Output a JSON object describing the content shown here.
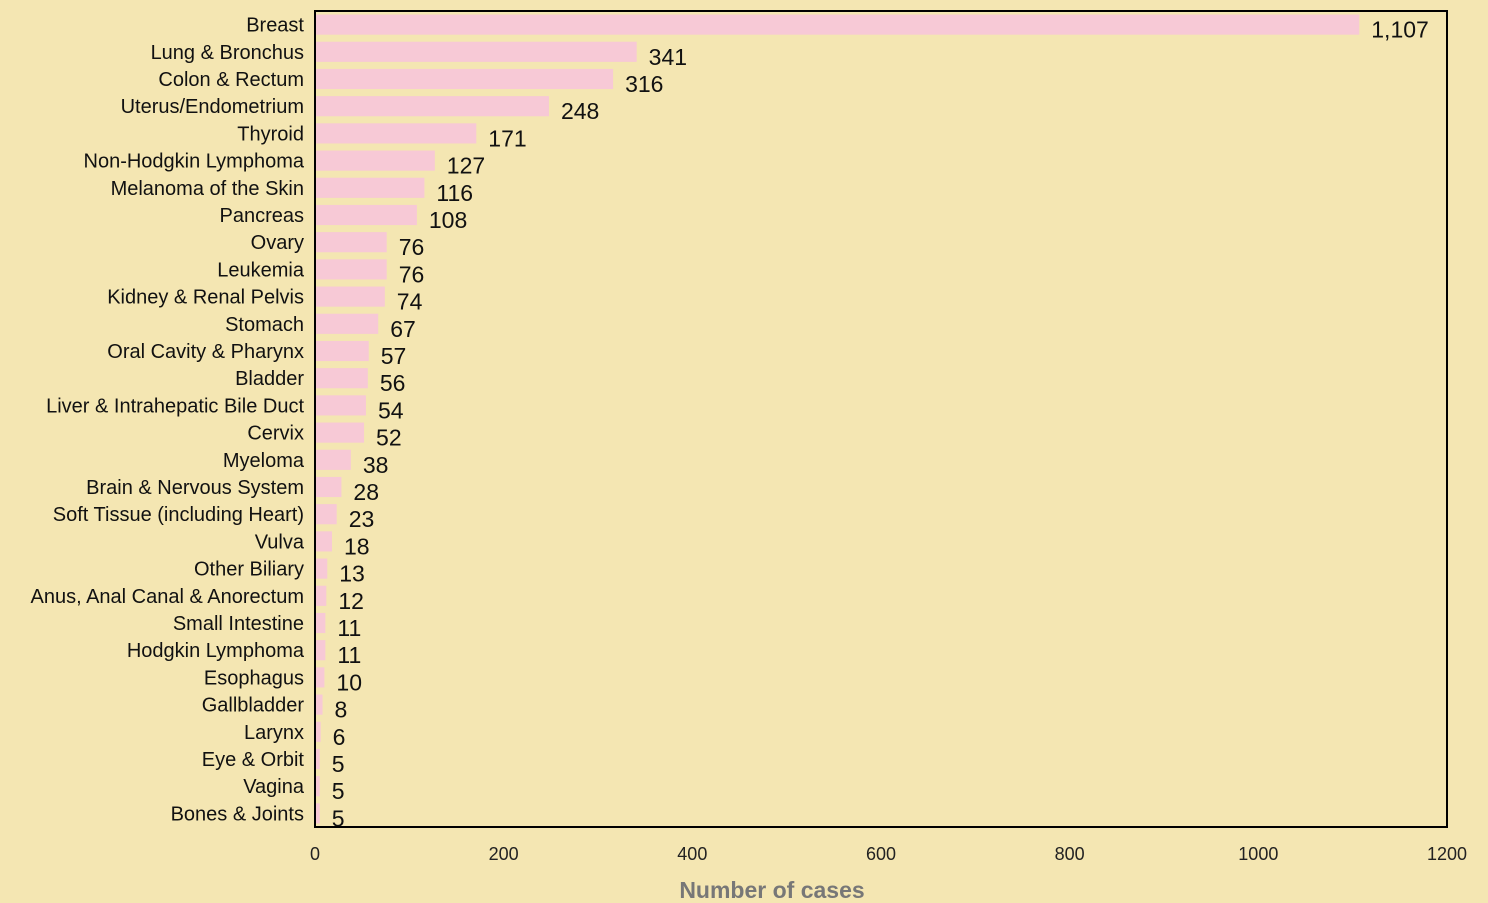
{
  "chart_data": {
    "type": "bar",
    "orientation": "horizontal",
    "title": "",
    "xlabel": "Number of cases",
    "ylabel": "",
    "xlim": [
      0,
      1200
    ],
    "xticks": [
      0,
      200,
      400,
      600,
      800,
      1000,
      1200
    ],
    "grid": false,
    "bar_color": "#f7c9d6",
    "background_color": "#f4e6b2",
    "categories": [
      "Breast",
      "Lung & Bronchus",
      "Colon & Rectum",
      "Uterus/Endometrium",
      "Thyroid",
      "Non-Hodgkin Lymphoma",
      "Melanoma of the Skin",
      "Pancreas",
      "Ovary",
      "Leukemia",
      "Kidney & Renal Pelvis",
      "Stomach",
      "Oral Cavity & Pharynx",
      "Bladder",
      "Liver & Intrahepatic Bile Duct",
      "Cervix",
      "Myeloma",
      "Brain & Nervous System",
      "Soft Tissue (including Heart)",
      "Vulva",
      "Other Biliary",
      "Anus, Anal Canal & Anorectum",
      "Small Intestine",
      "Hodgkin Lymphoma",
      "Esophagus",
      "Gallbladder",
      "Larynx",
      "Eye & Orbit",
      "Vagina",
      "Bones & Joints"
    ],
    "values": [
      1107,
      341,
      316,
      248,
      171,
      127,
      116,
      108,
      76,
      76,
      74,
      67,
      57,
      56,
      54,
      52,
      38,
      28,
      23,
      18,
      13,
      12,
      11,
      11,
      10,
      8,
      6,
      5,
      5,
      5
    ],
    "value_labels": [
      "1,107",
      "341",
      "316",
      "248",
      "171",
      "127",
      "116",
      "108",
      "76",
      "76",
      "74",
      "67",
      "57",
      "56",
      "54",
      "52",
      "38",
      "28",
      "23",
      "18",
      "13",
      "12",
      "11",
      "11",
      "10",
      "8",
      "6",
      "5",
      "5",
      "5"
    ]
  }
}
